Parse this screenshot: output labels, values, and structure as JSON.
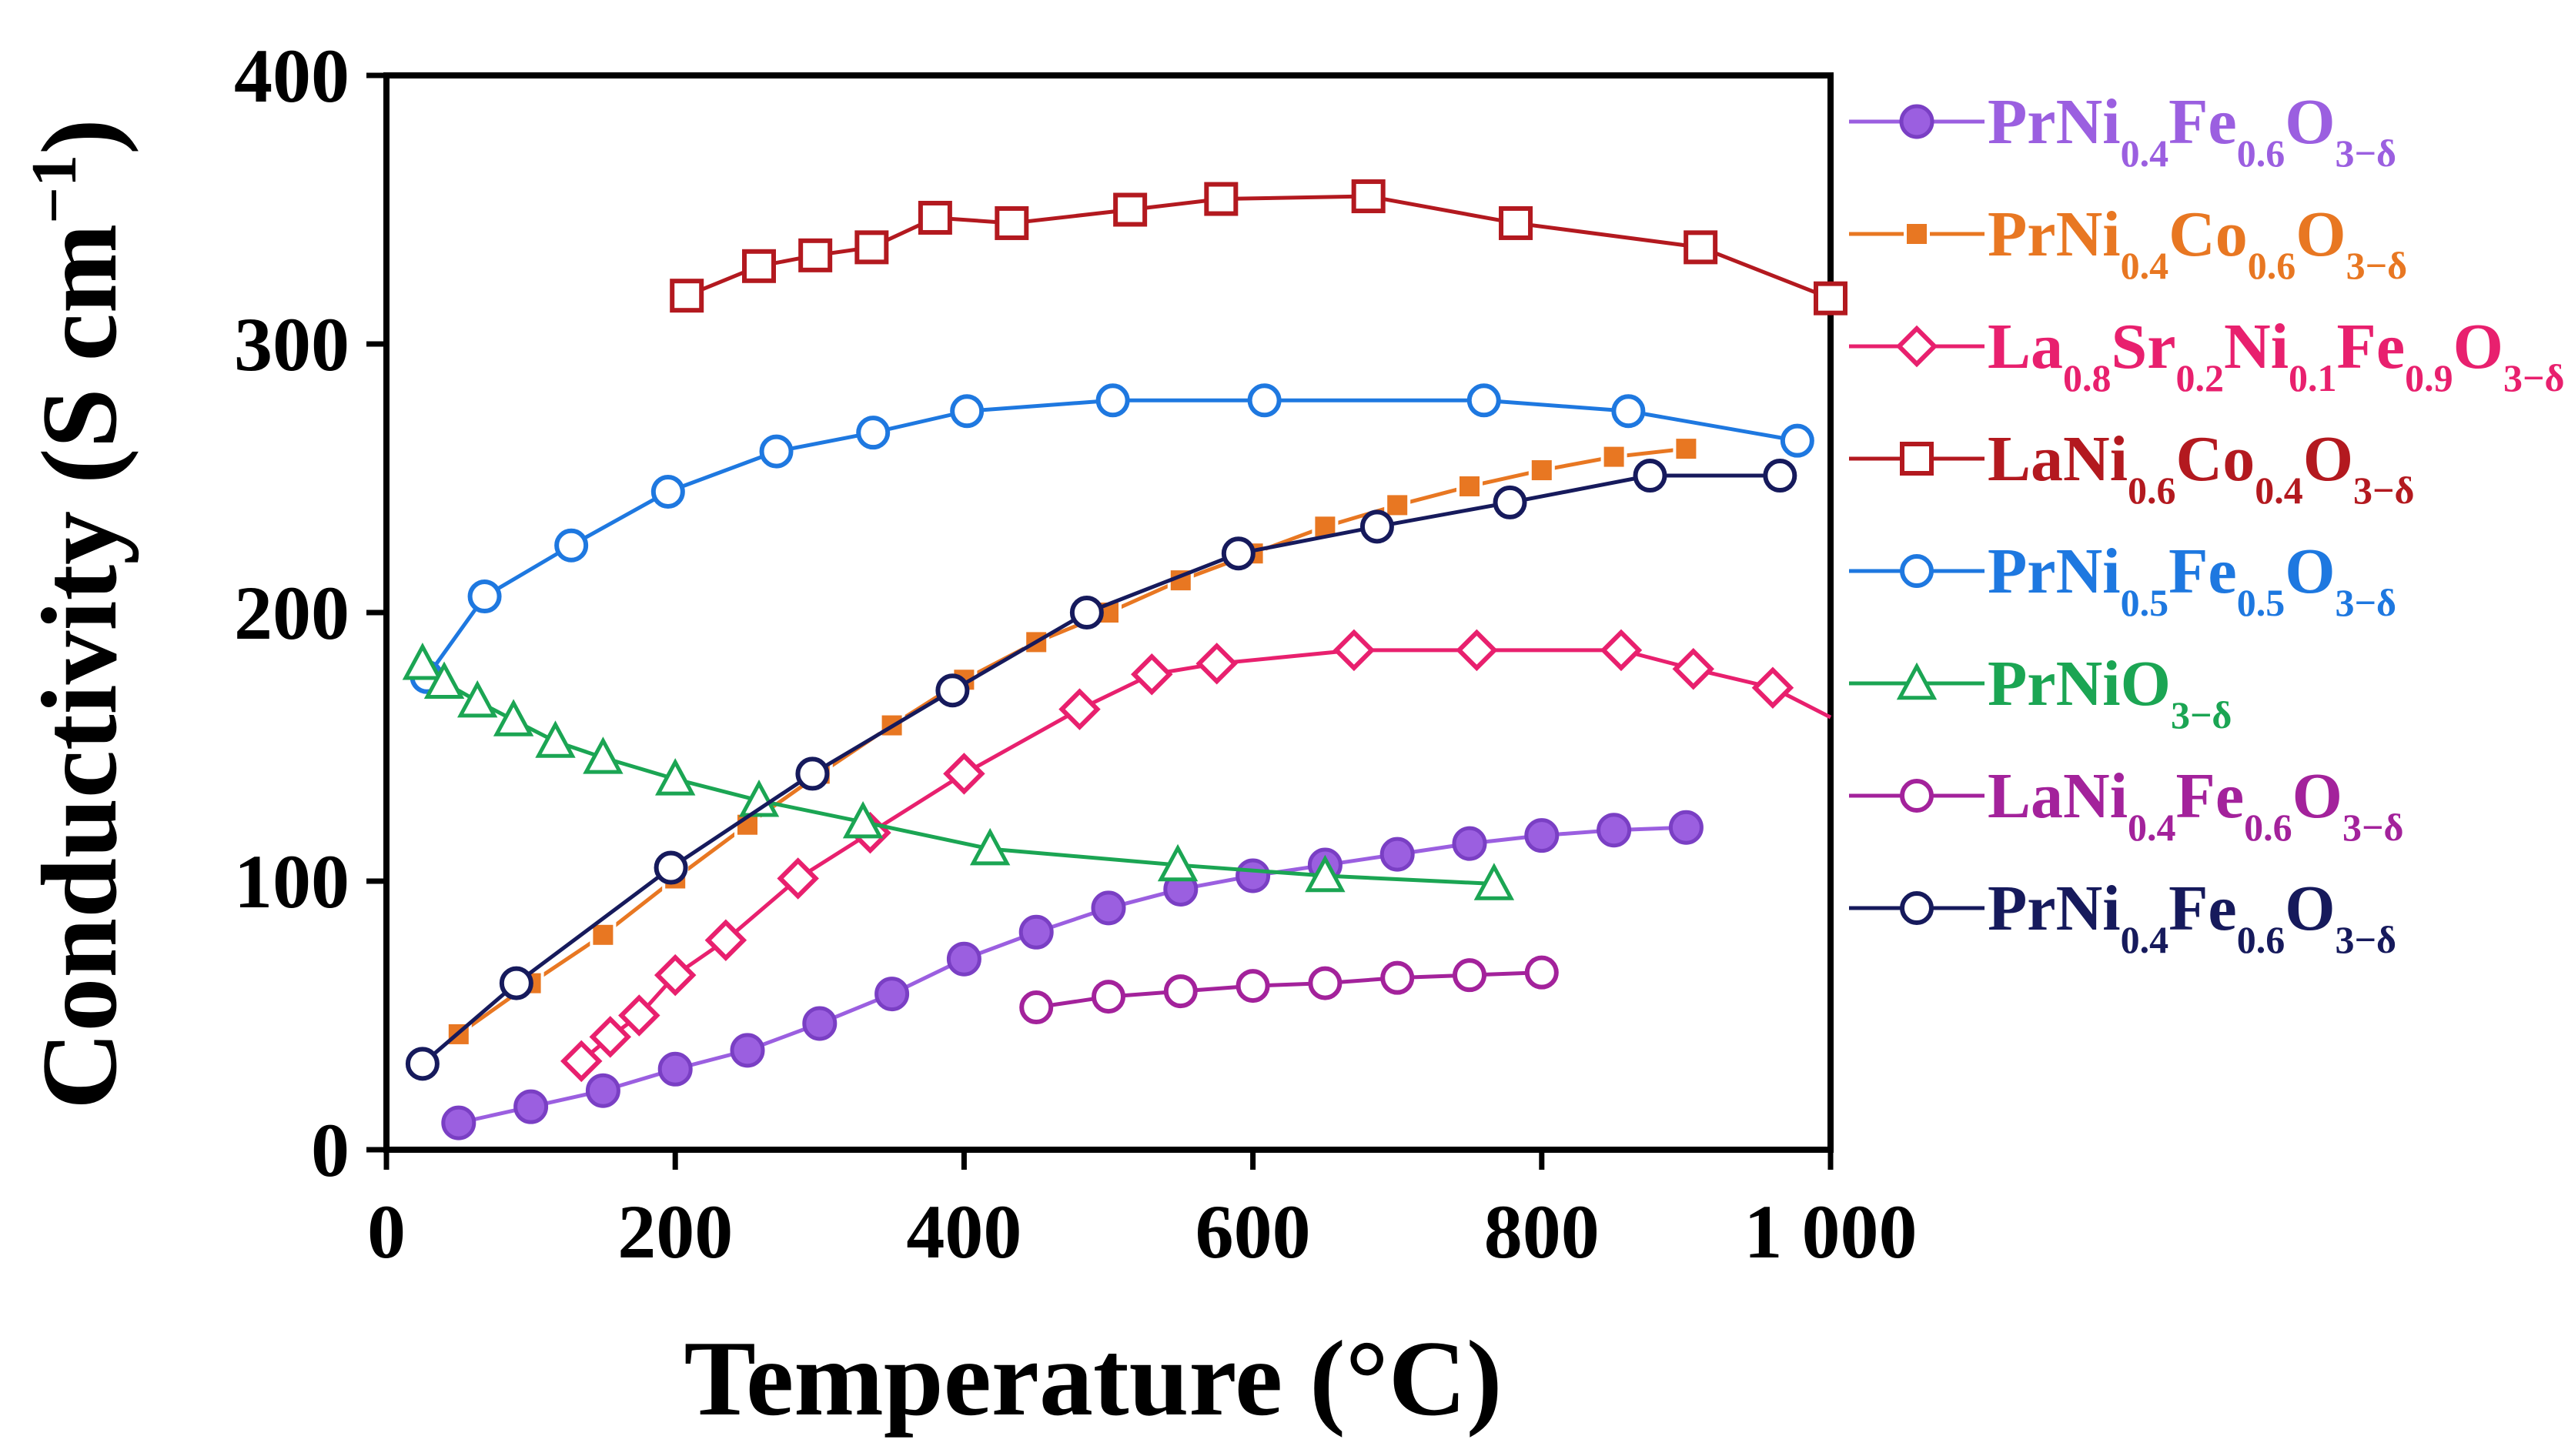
{
  "chart_data": {
    "type": "line",
    "xlabel": "Temperature (°C)",
    "ylabel_main": "Conductivity (S cm",
    "ylabel_sup": "−1",
    "ylabel_end": ")",
    "xlim": [
      0,
      1000
    ],
    "ylim": [
      0,
      400
    ],
    "xticks": [
      0,
      200,
      400,
      600,
      800,
      1000
    ],
    "xtick_labels": [
      "0",
      "200",
      "400",
      "600",
      "800",
      "1 000"
    ],
    "yticks": [
      0,
      100,
      200,
      300,
      400
    ],
    "ytick_labels": [
      "0",
      "100",
      "200",
      "300",
      "400"
    ],
    "grid": false,
    "legend_position": "right",
    "series": [
      {
        "key": "prni04fe06-filled",
        "name_parts": [
          [
            "PrNi",
            ""
          ],
          [
            "0.4",
            "sub"
          ],
          [
            "Fe",
            ""
          ],
          [
            "0.6",
            "sub"
          ],
          [
            "O",
            ""
          ],
          [
            "3−δ",
            "sub"
          ]
        ],
        "color": "#9B5FE0",
        "marker": "circle-filled",
        "x": [
          50,
          100,
          150,
          200,
          250,
          300,
          350,
          400,
          450,
          500,
          550,
          600,
          650,
          700,
          750,
          800,
          850,
          900
        ],
        "y": [
          10,
          16,
          22,
          30,
          37,
          47,
          58,
          71,
          81,
          90,
          97,
          102,
          106,
          110,
          114,
          117,
          119,
          120
        ]
      },
      {
        "key": "prni04co06",
        "name_parts": [
          [
            "PrNi",
            ""
          ],
          [
            "0.4",
            "sub"
          ],
          [
            "Co",
            ""
          ],
          [
            "0.6",
            "sub"
          ],
          [
            "O",
            ""
          ],
          [
            "3−δ",
            "sub"
          ]
        ],
        "color": "#E87722",
        "marker": "square-small",
        "x": [
          50,
          100,
          150,
          200,
          250,
          300,
          350,
          400,
          450,
          500,
          550,
          600,
          650,
          700,
          750,
          800,
          850,
          900
        ],
        "y": [
          43,
          62,
          80,
          101,
          121,
          140,
          158,
          175,
          189,
          200,
          212,
          222,
          232,
          240,
          247,
          253,
          258,
          261
        ]
      },
      {
        "key": "la08sr02ni01fe09",
        "name_parts": [
          [
            "La",
            ""
          ],
          [
            "0.8",
            "sub"
          ],
          [
            "Sr",
            ""
          ],
          [
            "0.2",
            "sub"
          ],
          [
            "Ni",
            ""
          ],
          [
            "0.1",
            "sub"
          ],
          [
            "Fe",
            ""
          ],
          [
            "0.9",
            "sub"
          ],
          [
            "O",
            ""
          ],
          [
            "3−δ",
            "sub"
          ]
        ],
        "color": "#E8206E",
        "marker": "diamond",
        "x": [
          135,
          155,
          175,
          200,
          235,
          285,
          335,
          400,
          480,
          530,
          575,
          670,
          755,
          855,
          905,
          960,
          1000
        ],
        "y": [
          33,
          42,
          50,
          65,
          78,
          101,
          118,
          140,
          164,
          177,
          181,
          186,
          186,
          186,
          179,
          172,
          161
        ]
      },
      {
        "key": "lani06co04",
        "name_parts": [
          [
            "LaNi",
            ""
          ],
          [
            "0.6",
            "sub"
          ],
          [
            "Co",
            ""
          ],
          [
            "0.4",
            "sub"
          ],
          [
            "O",
            ""
          ],
          [
            "3−δ",
            "sub"
          ]
        ],
        "color": "#B3191F",
        "marker": "square",
        "x": [
          208,
          258,
          297,
          336,
          380,
          433,
          515,
          578,
          680,
          782,
          910,
          1000
        ],
        "y": [
          318,
          329,
          333,
          336,
          347,
          345,
          350,
          354,
          355,
          345,
          336,
          317
        ]
      },
      {
        "key": "prni05fe05",
        "name_parts": [
          [
            "PrNi",
            ""
          ],
          [
            "0.5",
            "sub"
          ],
          [
            "Fe",
            ""
          ],
          [
            "0.5",
            "sub"
          ],
          [
            "O",
            ""
          ],
          [
            "3−δ",
            "sub"
          ]
        ],
        "color": "#1E78E0",
        "marker": "circle",
        "x": [
          28,
          68,
          128,
          195,
          270,
          337,
          402,
          503,
          608,
          760,
          860,
          977
        ],
        "y": [
          176,
          206,
          225,
          245,
          260,
          267,
          275,
          279,
          279,
          279,
          275,
          264
        ]
      },
      {
        "key": "prnio3",
        "name_parts": [
          [
            "PrNiO",
            ""
          ],
          [
            "3−δ",
            "sub"
          ]
        ],
        "color": "#1BA553",
        "marker": "triangle",
        "x": [
          25,
          40,
          63,
          88,
          117,
          150,
          200,
          258,
          330,
          418,
          548,
          650,
          767
        ],
        "y": [
          181,
          174,
          167,
          160,
          152,
          146,
          138,
          130,
          122,
          112,
          106,
          102,
          99
        ]
      },
      {
        "key": "lani04fe06",
        "name_parts": [
          [
            "LaNi",
            ""
          ],
          [
            "0.4",
            "sub"
          ],
          [
            "Fe",
            ""
          ],
          [
            "0.6",
            "sub"
          ],
          [
            "O",
            ""
          ],
          [
            "3−δ",
            "sub"
          ]
        ],
        "color": "#A3229B",
        "marker": "circle",
        "x": [
          450,
          500,
          550,
          600,
          650,
          700,
          750,
          800
        ],
        "y": [
          53,
          57,
          59,
          61,
          62,
          64,
          65,
          66
        ]
      },
      {
        "key": "prni04fe06-open",
        "name_parts": [
          [
            "PrNi",
            ""
          ],
          [
            "0.4",
            "sub"
          ],
          [
            "Fe",
            ""
          ],
          [
            "0.6",
            "sub"
          ],
          [
            "O",
            ""
          ],
          [
            "3−δ",
            "sub"
          ]
        ],
        "color": "#161A5C",
        "marker": "circle",
        "x": [
          25,
          90,
          197,
          295,
          392,
          485,
          590,
          686,
          778,
          875,
          965
        ],
        "y": [
          32,
          62,
          105,
          140,
          171,
          200,
          222,
          232,
          241,
          251,
          251
        ]
      }
    ]
  }
}
